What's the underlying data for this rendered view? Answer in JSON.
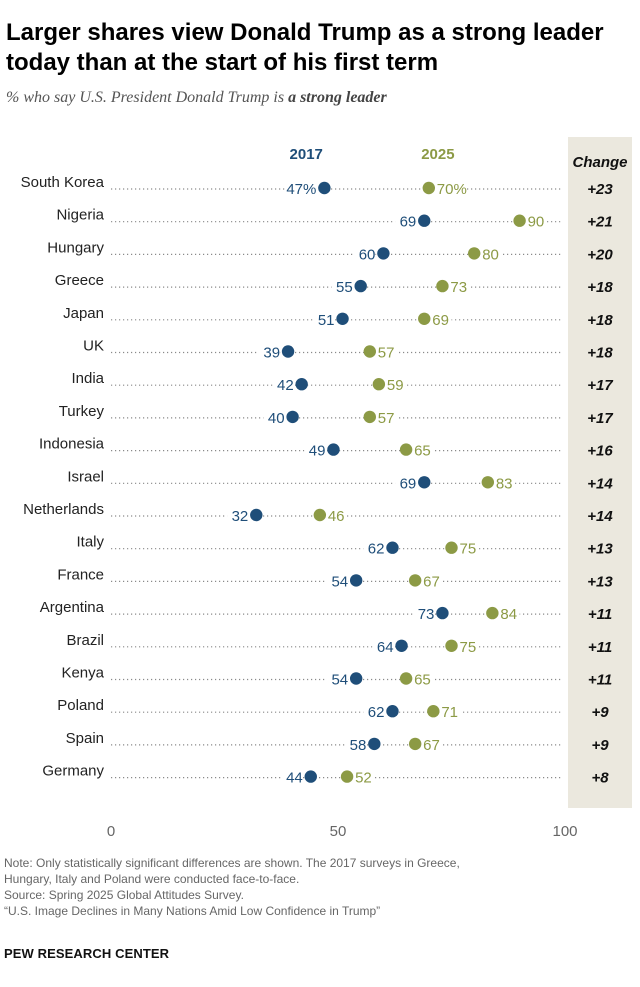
{
  "title": "Larger shares view Donald Trump as a strong leader today than at the start of his first term",
  "subtitle_prefix": "% who say U.S. President Donald Trump is ",
  "subtitle_emphasis": "a strong leader",
  "colors": {
    "series_2017": "#1f4e79",
    "series_2025": "#8c9a45",
    "change_band": "#ebe8de",
    "dotted_line": "#8a8a8a"
  },
  "chart_data": {
    "type": "dot",
    "title": "Larger shares view Donald Trump as a strong leader today than at the start of his first term",
    "series_labels": [
      "2017",
      "2025"
    ],
    "change_header": "Change",
    "categories": [
      "South Korea",
      "Nigeria",
      "Hungary",
      "Greece",
      "Japan",
      "UK",
      "India",
      "Turkey",
      "Indonesia",
      "Israel",
      "Netherlands",
      "Italy",
      "France",
      "Argentina",
      "Brazil",
      "Kenya",
      "Poland",
      "Spain",
      "Germany"
    ],
    "series": [
      {
        "name": "2017",
        "values": [
          47,
          69,
          60,
          55,
          51,
          39,
          42,
          40,
          49,
          69,
          32,
          62,
          54,
          73,
          64,
          54,
          62,
          58,
          44
        ]
      },
      {
        "name": "2025",
        "values": [
          70,
          90,
          80,
          73,
          69,
          57,
          59,
          57,
          65,
          83,
          46,
          75,
          67,
          84,
          75,
          65,
          71,
          67,
          52
        ]
      }
    ],
    "value_labels_2017": [
      "47%",
      "69",
      "60",
      "55",
      "51",
      "39",
      "42",
      "40",
      "49",
      "69",
      "32",
      "62",
      "54",
      "73",
      "64",
      "54",
      "62",
      "58",
      "44"
    ],
    "value_labels_2025": [
      "70%",
      "90",
      "80",
      "73",
      "69",
      "57",
      "59",
      "57",
      "65",
      "83",
      "46",
      "75",
      "67",
      "84",
      "75",
      "65",
      "71",
      "67",
      "52"
    ],
    "changes": [
      "+23",
      "+21",
      "+20",
      "+18",
      "+18",
      "+18",
      "+17",
      "+17",
      "+16",
      "+14",
      "+14",
      "+13",
      "+13",
      "+11",
      "+11",
      "+11",
      "+9",
      "+9",
      "+8"
    ],
    "xlim": [
      0,
      100
    ],
    "xticks": [
      0,
      50,
      100
    ],
    "xtick_labels": [
      "0",
      "50",
      "100"
    ]
  },
  "notes": {
    "note_line1": "Note: Only statistically significant differences are shown. The 2017 surveys in Greece,",
    "note_line2": "Hungary, Italy and Poland were conducted face-to-face.",
    "source": "Source: Spring 2025 Global Attitudes Survey.",
    "report": "“U.S. Image Declines in Many Nations Amid Low Confidence in Trump”"
  },
  "brand": "PEW RESEARCH CENTER"
}
